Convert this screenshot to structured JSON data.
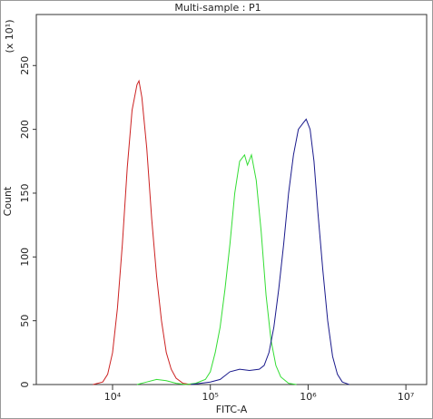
{
  "chart_data": {
    "type": "line",
    "title": "Multi-sample : P1",
    "x_label": "FITC-A",
    "y_label": "Count",
    "y_multiplier_label": "(x 10¹)",
    "xscale": "log",
    "xlim": [
      1660,
      16300000
    ],
    "ylim": [
      0,
      290
    ],
    "xticks": [
      {
        "value": 10000,
        "label": "10⁴"
      },
      {
        "value": 100000,
        "label": "10⁵"
      },
      {
        "value": 1000000,
        "label": "10⁶"
      },
      {
        "value": 10000000,
        "label": "10⁷"
      }
    ],
    "yticks": [
      0,
      50,
      100,
      150,
      200,
      250
    ],
    "grid": false,
    "series": [
      {
        "color": "#cc2222",
        "x": [
          6310,
          7943,
          8913,
          10000,
          11220,
          12589,
          14125,
          15849,
          17783,
          18621,
          19953,
          22387,
          25119,
          28184,
          31623,
          35481,
          39811,
          44668,
          52481,
          63096
        ],
        "values": [
          0,
          2,
          8,
          25,
          60,
          110,
          170,
          215,
          235,
          238,
          225,
          185,
          130,
          85,
          50,
          25,
          12,
          5,
          1,
          0
        ]
      },
      {
        "color": "#33dd33",
        "x": [
          17783,
          22387,
          28184,
          35481,
          44668,
          56234,
          70795,
          89125,
          100000,
          112202,
          125893,
          141254,
          158489,
          177828,
          199526,
          223872,
          239883,
          263027,
          295121,
          331131,
          371535,
          416869,
          467735,
          524807,
          630957,
          758578
        ],
        "values": [
          0,
          2,
          4,
          3,
          1,
          0,
          1,
          4,
          10,
          25,
          45,
          75,
          110,
          150,
          175,
          180,
          172,
          180,
          160,
          120,
          70,
          35,
          15,
          6,
          1,
          0
        ]
      },
      {
        "color": "#1a1a8c",
        "x": [
          63096,
          79433,
          100000,
          125893,
          158489,
          199526,
          251189,
          316228,
          354813,
          398107,
          446684,
          501187,
          562341,
          630957,
          707946,
          794328,
          891251,
          954993,
          1047129,
          1148154,
          1258925,
          1412538,
          1584893,
          1778279,
          1995262,
          2238721,
          2630268
        ],
        "values": [
          0,
          1,
          2,
          4,
          10,
          12,
          11,
          12,
          15,
          25,
          45,
          75,
          110,
          150,
          180,
          200,
          205,
          208,
          200,
          175,
          135,
          90,
          50,
          22,
          8,
          2,
          0
        ]
      }
    ]
  }
}
